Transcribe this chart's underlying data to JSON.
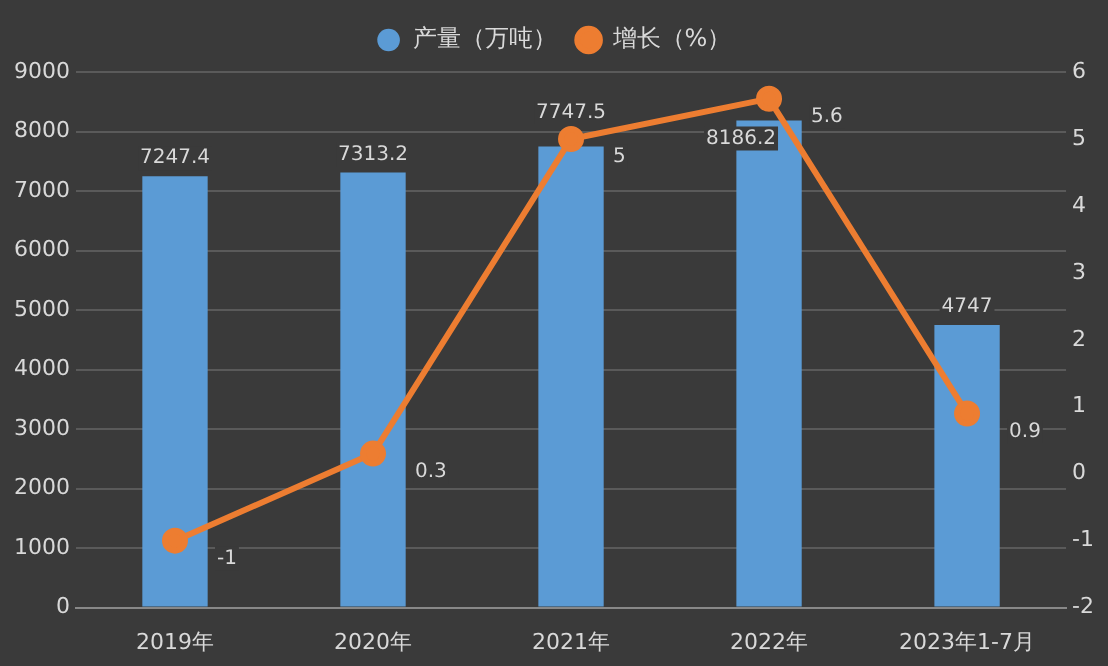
{
  "chart_data": {
    "type": "bar",
    "categories": [
      "2019年",
      "2020年",
      "2021年",
      "2022年",
      "2023年1-7月"
    ],
    "series": [
      {
        "name": "产量（万吨）",
        "color": "#5b9bd5",
        "values": [
          7247.4,
          7313.2,
          7747.5,
          8186.2,
          4747
        ]
      },
      {
        "name": "增长（%）",
        "type": "line",
        "axis": "y2",
        "color": "#ed7d31",
        "values": [
          -1,
          0.3,
          5,
          5.6,
          0.9
        ]
      }
    ],
    "ylim": [
      0,
      9000
    ],
    "yticks": [
      0,
      1000,
      2000,
      3000,
      4000,
      5000,
      6000,
      7000,
      8000,
      9000
    ],
    "y2lim": [
      -2,
      6
    ],
    "y2ticks": [
      -2,
      -1,
      0,
      1,
      2,
      3,
      4,
      5,
      6
    ],
    "grid": "y",
    "legend": "top",
    "marker": "circle",
    "data_labels": true
  }
}
